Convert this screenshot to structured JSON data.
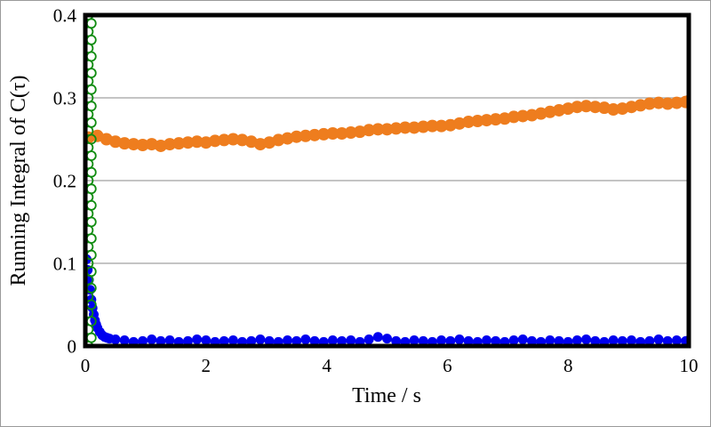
{
  "figure": {
    "background": "#ffffff",
    "outer_border_color": "#9a9a9a"
  },
  "chart_data": {
    "type": "scatter",
    "title": "",
    "xlabel": "Time / s",
    "ylabel": "Running Integral of C(τ)",
    "xlim": [
      0,
      10
    ],
    "ylim": [
      0,
      0.4
    ],
    "xticks": {
      "values": [
        0,
        2,
        4,
        6,
        8,
        10
      ],
      "labels": [
        "0",
        "2",
        "4",
        "6",
        "8",
        "10"
      ]
    },
    "yticks": {
      "values": [
        0,
        0.1,
        0.2,
        0.3,
        0.4
      ],
      "labels": [
        "0",
        "0.1",
        "0.2",
        "0.3",
        "0.4"
      ]
    },
    "grid_y": [
      0.1,
      0.2,
      0.3
    ],
    "grid_color": "#b0b0b0",
    "frame_color": "#000000",
    "legend": null,
    "series": [
      {
        "name": "orange-filled-circles",
        "marker": "filled-circle",
        "color": "#EE7D1E",
        "radius": 7,
        "points": [
          [
            0.05,
            0.252
          ],
          [
            0.2,
            0.254
          ],
          [
            0.35,
            0.25
          ],
          [
            0.5,
            0.247
          ],
          [
            0.65,
            0.245
          ],
          [
            0.8,
            0.244
          ],
          [
            0.95,
            0.243
          ],
          [
            1.1,
            0.244
          ],
          [
            1.25,
            0.242
          ],
          [
            1.4,
            0.244
          ],
          [
            1.55,
            0.245
          ],
          [
            1.7,
            0.246
          ],
          [
            1.85,
            0.247
          ],
          [
            2,
            0.246
          ],
          [
            2.15,
            0.248
          ],
          [
            2.3,
            0.249
          ],
          [
            2.45,
            0.25
          ],
          [
            2.6,
            0.249
          ],
          [
            2.75,
            0.247
          ],
          [
            2.9,
            0.244
          ],
          [
            3.05,
            0.246
          ],
          [
            3.2,
            0.249
          ],
          [
            3.35,
            0.251
          ],
          [
            3.5,
            0.253
          ],
          [
            3.65,
            0.254
          ],
          [
            3.8,
            0.255
          ],
          [
            3.95,
            0.256
          ],
          [
            4.1,
            0.257
          ],
          [
            4.25,
            0.257
          ],
          [
            4.4,
            0.258
          ],
          [
            4.55,
            0.259
          ],
          [
            4.7,
            0.261
          ],
          [
            4.85,
            0.262
          ],
          [
            5,
            0.262
          ],
          [
            5.15,
            0.263
          ],
          [
            5.3,
            0.264
          ],
          [
            5.45,
            0.264
          ],
          [
            5.6,
            0.265
          ],
          [
            5.75,
            0.266
          ],
          [
            5.9,
            0.266
          ],
          [
            6.05,
            0.267
          ],
          [
            6.2,
            0.269
          ],
          [
            6.35,
            0.271
          ],
          [
            6.5,
            0.272
          ],
          [
            6.65,
            0.273
          ],
          [
            6.8,
            0.274
          ],
          [
            6.95,
            0.275
          ],
          [
            7.1,
            0.277
          ],
          [
            7.25,
            0.278
          ],
          [
            7.4,
            0.279
          ],
          [
            7.55,
            0.281
          ],
          [
            7.7,
            0.283
          ],
          [
            7.85,
            0.285
          ],
          [
            8,
            0.287
          ],
          [
            8.15,
            0.289
          ],
          [
            8.3,
            0.29
          ],
          [
            8.45,
            0.289
          ],
          [
            8.6,
            0.288
          ],
          [
            8.75,
            0.286
          ],
          [
            8.9,
            0.287
          ],
          [
            9.05,
            0.289
          ],
          [
            9.2,
            0.291
          ],
          [
            9.35,
            0.293
          ],
          [
            9.5,
            0.294
          ],
          [
            9.65,
            0.293
          ],
          [
            9.8,
            0.294
          ],
          [
            9.95,
            0.295
          ],
          [
            10,
            0.296
          ]
        ]
      },
      {
        "name": "blue-filled-circles",
        "marker": "filled-circle",
        "color": "#0000EE",
        "radius": 5.5,
        "points": [
          [
            0.02,
            0.105
          ],
          [
            0.04,
            0.092
          ],
          [
            0.06,
            0.08
          ],
          [
            0.08,
            0.068
          ],
          [
            0.1,
            0.056
          ],
          [
            0.12,
            0.046
          ],
          [
            0.14,
            0.038
          ],
          [
            0.16,
            0.031
          ],
          [
            0.18,
            0.026
          ],
          [
            0.2,
            0.022
          ],
          [
            0.24,
            0.017
          ],
          [
            0.28,
            0.013
          ],
          [
            0.32,
            0.011
          ],
          [
            0.36,
            0.01
          ],
          [
            0.4,
            0.009
          ],
          [
            0.5,
            0.008
          ],
          [
            0.65,
            0.007
          ],
          [
            0.8,
            0.005
          ],
          [
            0.95,
            0.006
          ],
          [
            1.1,
            0.008
          ],
          [
            1.25,
            0.006
          ],
          [
            1.4,
            0.007
          ],
          [
            1.55,
            0.005
          ],
          [
            1.7,
            0.006
          ],
          [
            1.85,
            0.008
          ],
          [
            2,
            0.007
          ],
          [
            2.15,
            0.005
          ],
          [
            2.3,
            0.006
          ],
          [
            2.45,
            0.007
          ],
          [
            2.6,
            0.005
          ],
          [
            2.75,
            0.006
          ],
          [
            2.9,
            0.008
          ],
          [
            3.05,
            0.006
          ],
          [
            3.2,
            0.005
          ],
          [
            3.35,
            0.007
          ],
          [
            3.5,
            0.006
          ],
          [
            3.65,
            0.008
          ],
          [
            3.8,
            0.006
          ],
          [
            3.95,
            0.005
          ],
          [
            4.1,
            0.007
          ],
          [
            4.25,
            0.006
          ],
          [
            4.4,
            0.007
          ],
          [
            4.55,
            0.005
          ],
          [
            4.7,
            0.008
          ],
          [
            4.85,
            0.011
          ],
          [
            5,
            0.009
          ],
          [
            5.15,
            0.006
          ],
          [
            5.3,
            0.005
          ],
          [
            5.45,
            0.007
          ],
          [
            5.6,
            0.006
          ],
          [
            5.75,
            0.005
          ],
          [
            5.9,
            0.007
          ],
          [
            6.05,
            0.006
          ],
          [
            6.2,
            0.008
          ],
          [
            6.35,
            0.006
          ],
          [
            6.5,
            0.005
          ],
          [
            6.65,
            0.007
          ],
          [
            6.8,
            0.006
          ],
          [
            6.95,
            0.005
          ],
          [
            7.1,
            0.007
          ],
          [
            7.25,
            0.008
          ],
          [
            7.4,
            0.006
          ],
          [
            7.55,
            0.005
          ],
          [
            7.7,
            0.007
          ],
          [
            7.85,
            0.006
          ],
          [
            8,
            0.005
          ],
          [
            8.15,
            0.007
          ],
          [
            8.3,
            0.008
          ],
          [
            8.45,
            0.006
          ],
          [
            8.6,
            0.005
          ],
          [
            8.75,
            0.007
          ],
          [
            8.9,
            0.006
          ],
          [
            9.05,
            0.007
          ],
          [
            9.2,
            0.005
          ],
          [
            9.35,
            0.006
          ],
          [
            9.5,
            0.008
          ],
          [
            9.65,
            0.006
          ],
          [
            9.8,
            0.007
          ],
          [
            9.95,
            0.006
          ],
          [
            10,
            0.007
          ]
        ]
      },
      {
        "name": "green-open-circles",
        "marker": "open-circle",
        "color": "#108C10",
        "radius": 5,
        "stroke_width": 1.8,
        "points": [
          [
            0.05,
            0
          ],
          [
            0.1,
            0.01
          ],
          [
            0.05,
            0.02
          ],
          [
            0.1,
            0.03
          ],
          [
            0.05,
            0.04
          ],
          [
            0.1,
            0.05
          ],
          [
            0.05,
            0.06
          ],
          [
            0.1,
            0.07
          ],
          [
            0.05,
            0.08
          ],
          [
            0.1,
            0.09
          ],
          [
            0.05,
            0.1
          ],
          [
            0.1,
            0.11
          ],
          [
            0.05,
            0.12
          ],
          [
            0.1,
            0.13
          ],
          [
            0.05,
            0.14
          ],
          [
            0.1,
            0.15
          ],
          [
            0.05,
            0.16
          ],
          [
            0.1,
            0.17
          ],
          [
            0.05,
            0.18
          ],
          [
            0.1,
            0.19
          ],
          [
            0.05,
            0.2
          ],
          [
            0.1,
            0.21
          ],
          [
            0.05,
            0.22
          ],
          [
            0.1,
            0.23
          ],
          [
            0.05,
            0.24
          ],
          [
            0.1,
            0.25
          ],
          [
            0.05,
            0.26
          ],
          [
            0.1,
            0.27
          ],
          [
            0.05,
            0.28
          ],
          [
            0.1,
            0.29
          ],
          [
            0.05,
            0.3
          ],
          [
            0.1,
            0.31
          ],
          [
            0.05,
            0.32
          ],
          [
            0.1,
            0.33
          ],
          [
            0.05,
            0.34
          ],
          [
            0.1,
            0.35
          ],
          [
            0.05,
            0.36
          ],
          [
            0.1,
            0.37
          ],
          [
            0.05,
            0.38
          ],
          [
            0.1,
            0.39
          ],
          [
            0.05,
            0.4
          ]
        ]
      }
    ]
  }
}
